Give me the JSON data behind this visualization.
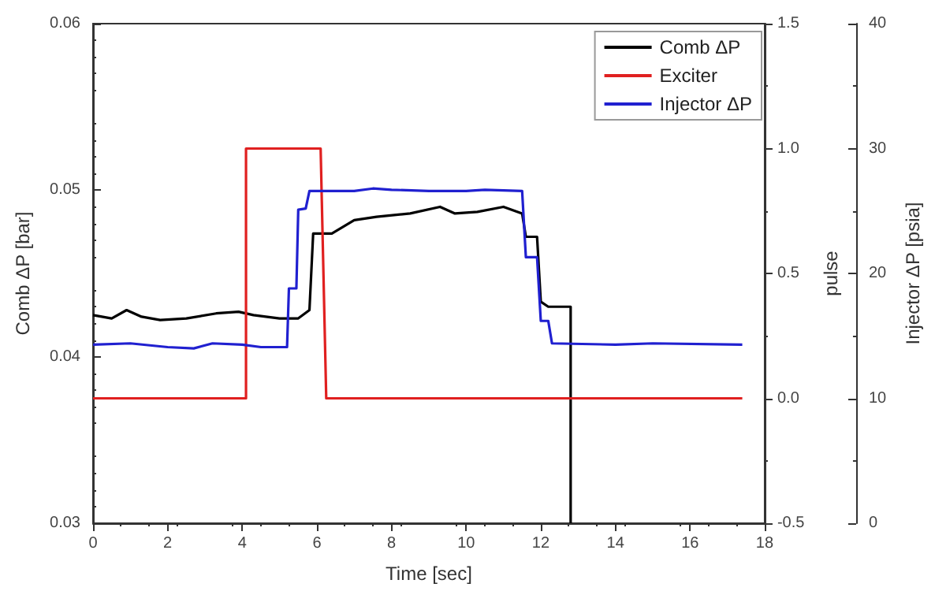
{
  "chart_data": {
    "type": "line",
    "xlabel": "Time [sec]",
    "ylabel": "Comb ΔP [bar]",
    "y2label": "pulse",
    "y3label": "Injector ΔP [psia]",
    "xlim": [
      0,
      18
    ],
    "xticks": [
      0,
      2,
      4,
      6,
      8,
      10,
      12,
      14,
      16,
      18
    ],
    "ylim": [
      0.03,
      0.06
    ],
    "yticks": [
      0.03,
      0.04,
      0.05,
      0.06
    ],
    "y2lim": [
      -0.5,
      1.5
    ],
    "y2ticks": [
      {
        "value": -0.5,
        "label": "-0.5"
      },
      {
        "value": 0,
        "label": "0.0"
      },
      {
        "value": 0.5,
        "label": "0.5"
      },
      {
        "value": 1,
        "label": "1.0"
      },
      {
        "value": 1.5,
        "label": "1.5"
      }
    ],
    "y3lim": [
      0,
      40
    ],
    "y3ticks": [
      0,
      10,
      20,
      30,
      40
    ],
    "legend": "top right",
    "grid": false,
    "marker": "none",
    "line_style": "solid",
    "series": [
      {
        "name": "Comb ΔP",
        "color": "#000000",
        "x": [
          0,
          0.5,
          0.9,
          1.3,
          1.8,
          2.5,
          3.3,
          3.9,
          4.3,
          5.0,
          5.5,
          5.8,
          5.9,
          6.4,
          6.7,
          7.0,
          7.6,
          8.5,
          9.3,
          9.7,
          10.3,
          11.0,
          11.5,
          11.6,
          11.9,
          12.0,
          12.2,
          12.8,
          12.8
        ],
        "values": [
          0.0425,
          0.0423,
          0.0428,
          0.0424,
          0.0422,
          0.0423,
          0.0426,
          0.0427,
          0.0425,
          0.0423,
          0.0423,
          0.0428,
          0.0474,
          0.0474,
          0.0478,
          0.0482,
          0.0484,
          0.0486,
          0.049,
          0.0486,
          0.0487,
          0.049,
          0.0486,
          0.0472,
          0.0472,
          0.0433,
          0.043,
          0.043,
          0.03
        ]
      },
      {
        "name": "Exciter",
        "color": "#e02020",
        "axis": "y2",
        "x": [
          0,
          4.1,
          4.1,
          6.1,
          6.25,
          17.4
        ],
        "values": [
          0,
          0,
          1,
          1,
          0,
          0
        ]
      },
      {
        "name": "Injector ΔP",
        "color": "#2020d0",
        "axis": "y3",
        "x": [
          0,
          1,
          2,
          2.7,
          3.2,
          4,
          4.5,
          5.2,
          5.25,
          5.45,
          5.5,
          5.7,
          5.8,
          7,
          7.5,
          8,
          9,
          10,
          10.5,
          11.5,
          11.6,
          11.9,
          12.0,
          12.2,
          12.3,
          14,
          15,
          17.4
        ],
        "values": [
          14.3,
          14.4,
          14.1,
          14.0,
          14.4,
          14.3,
          14.1,
          14.1,
          18.8,
          18.8,
          25.1,
          25.2,
          26.6,
          26.6,
          26.8,
          26.7,
          26.6,
          26.6,
          26.7,
          26.6,
          21.3,
          21.3,
          16.2,
          16.2,
          14.4,
          14.3,
          14.4,
          14.3
        ]
      }
    ]
  }
}
